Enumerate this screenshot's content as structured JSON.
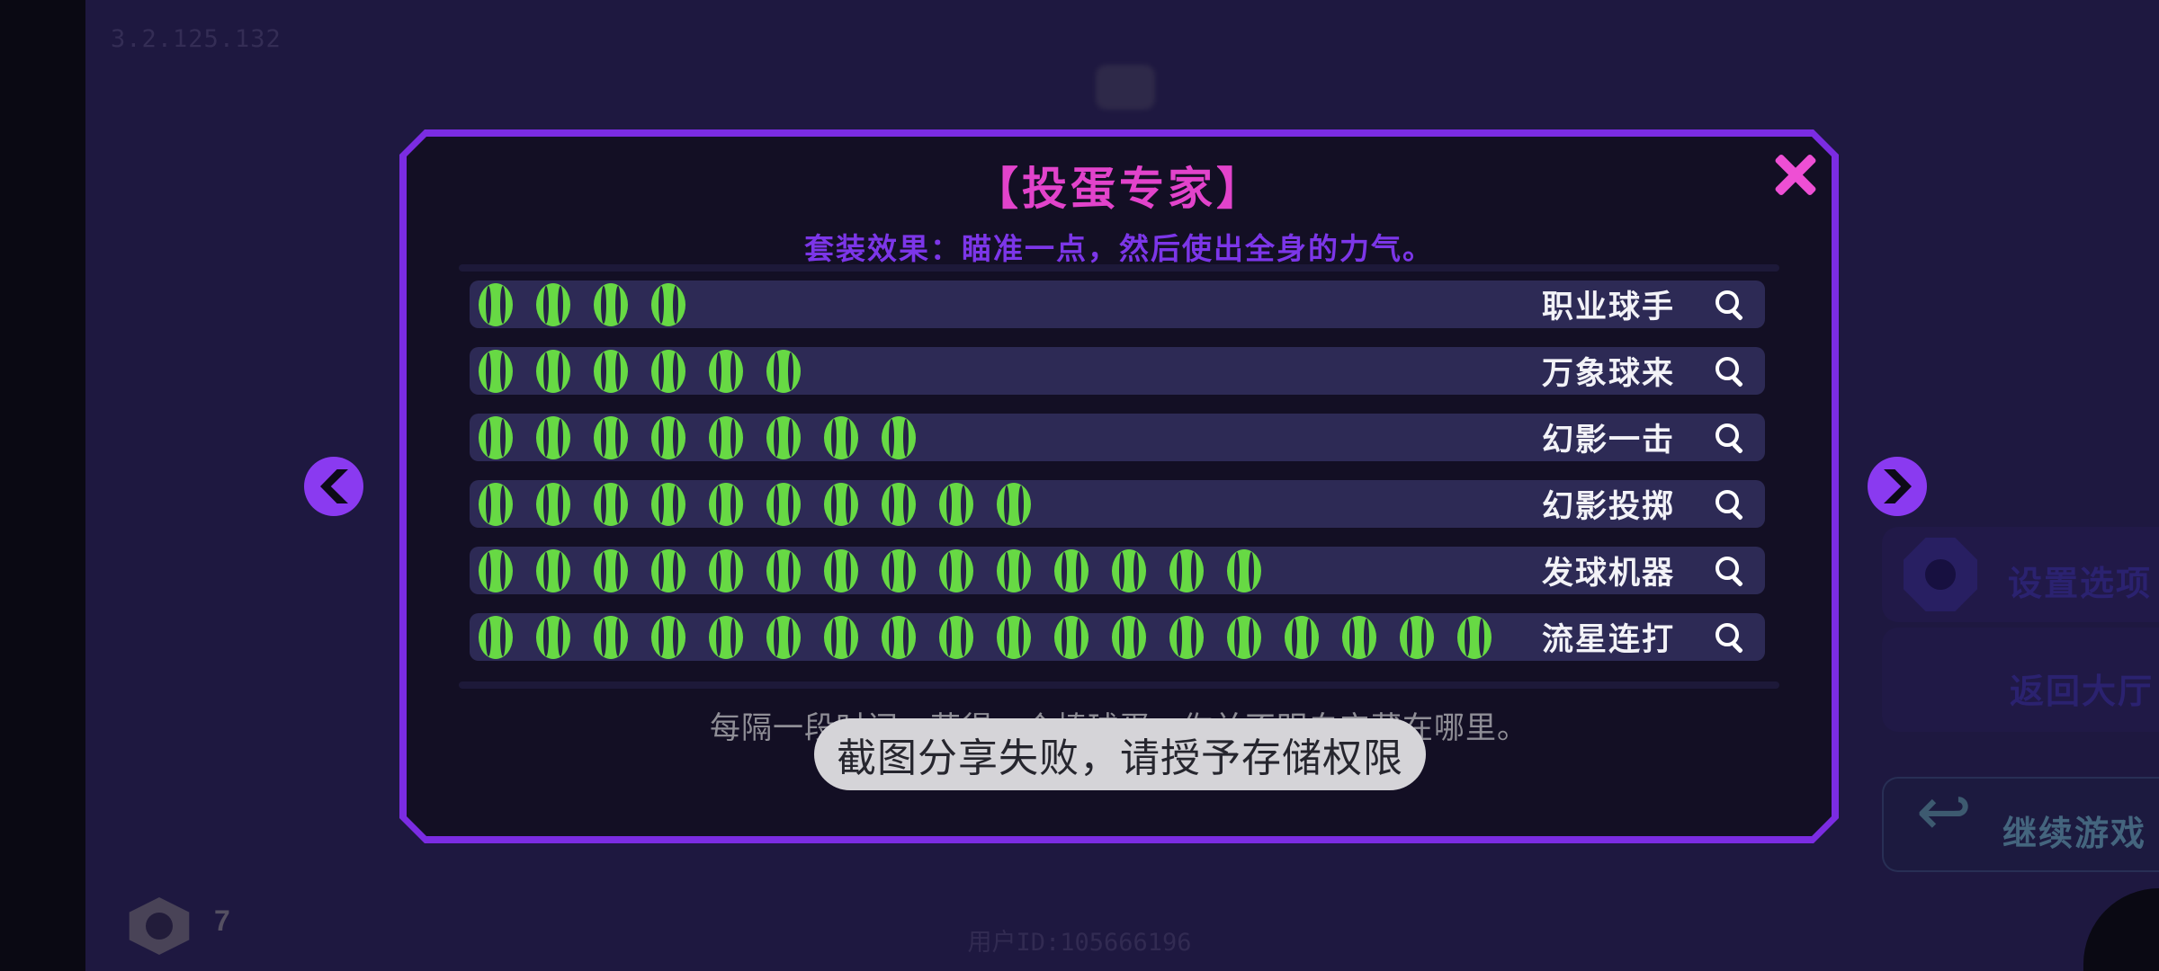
{
  "app": {
    "version": "3.2.125.132",
    "user_id": "用户ID:105666196"
  },
  "modal": {
    "title": "【投蛋专家】",
    "subtitle": "套装效果：瞄准一点，然后使出全身的力气。",
    "description": "每隔一段时间，获得一个棒球蛋。你并不明白它藏在哪里。",
    "skills": [
      {
        "name": "职业球手",
        "balls": 4
      },
      {
        "name": "万象球来",
        "balls": 6
      },
      {
        "name": "幻影一击",
        "balls": 8
      },
      {
        "name": "幻影投掷",
        "balls": 10
      },
      {
        "name": "发球机器",
        "balls": 14
      },
      {
        "name": "流星连打",
        "balls": 18
      }
    ],
    "icons": {
      "ball": "tennis-ball-icon",
      "row_action": "magnifier-icon",
      "close": "close-x-icon"
    }
  },
  "pager": {
    "prev": "chevron-left-icon",
    "next": "chevron-right-icon"
  },
  "side_menu": {
    "items": [
      {
        "label": "设置选项",
        "icon": "gear-icon"
      },
      {
        "label": "返回大厅",
        "icon": "trophy-icon"
      },
      {
        "label": "继续游戏",
        "icon": "resume-arrow-icon"
      }
    ]
  },
  "toast": {
    "message": "截图分享失败，请授予存储权限"
  },
  "hud": {
    "gem_icon": "gem-icon",
    "gem_count": "7"
  },
  "colors": {
    "background": "#1e1840",
    "modal_border": "#7b2ce2",
    "modal_bg": "#130f24",
    "title_pink": "#e243cb",
    "subtitle_purple": "#7c36e8",
    "row_bg": "#2d2a55",
    "ball_green": "#67d944",
    "arrow_purple": "#8a3af0",
    "close_pink": "#ee4fd4",
    "toast_bg": "#d5d4d8",
    "toast_text": "#26262e"
  }
}
